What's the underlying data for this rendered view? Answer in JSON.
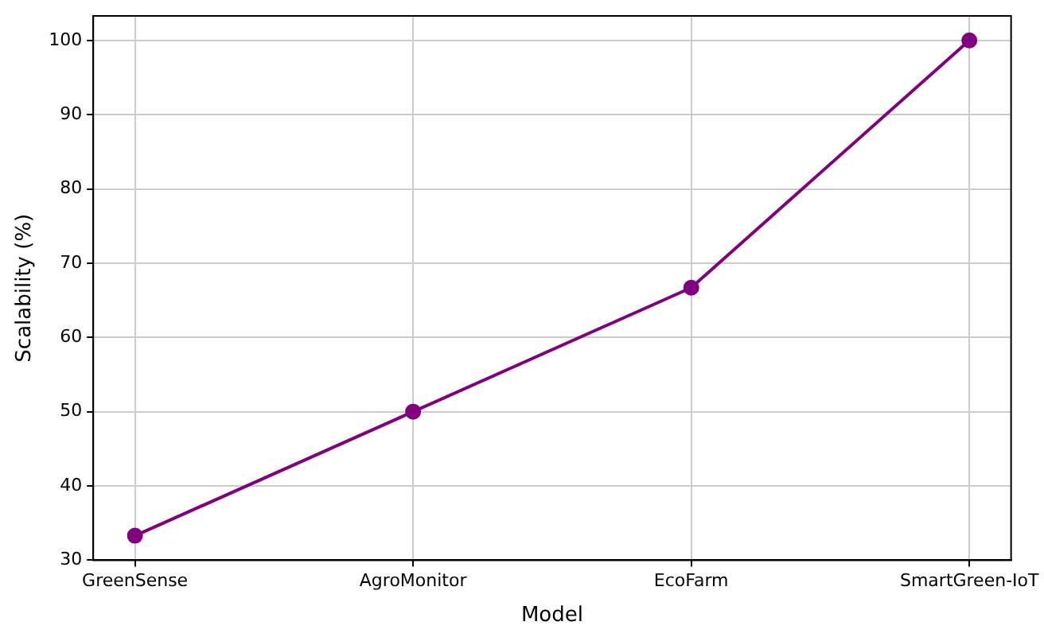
{
  "chart_data": {
    "type": "line",
    "xlabel": "Model",
    "ylabel": "Scalability (%)",
    "categories": [
      "GreenSense",
      "AgroMonitor",
      "EcoFarm",
      "SmartGreen-IoT"
    ],
    "series": [
      {
        "color": "#800080",
        "values": [
          33.3,
          50,
          66.7,
          100
        ]
      }
    ],
    "ylim": [
      30,
      103.3
    ],
    "yticks": [
      30,
      40,
      50,
      60,
      70,
      80,
      90,
      100
    ],
    "grid": true,
    "marker": "circle",
    "line_style": "solid",
    "legend": false
  }
}
